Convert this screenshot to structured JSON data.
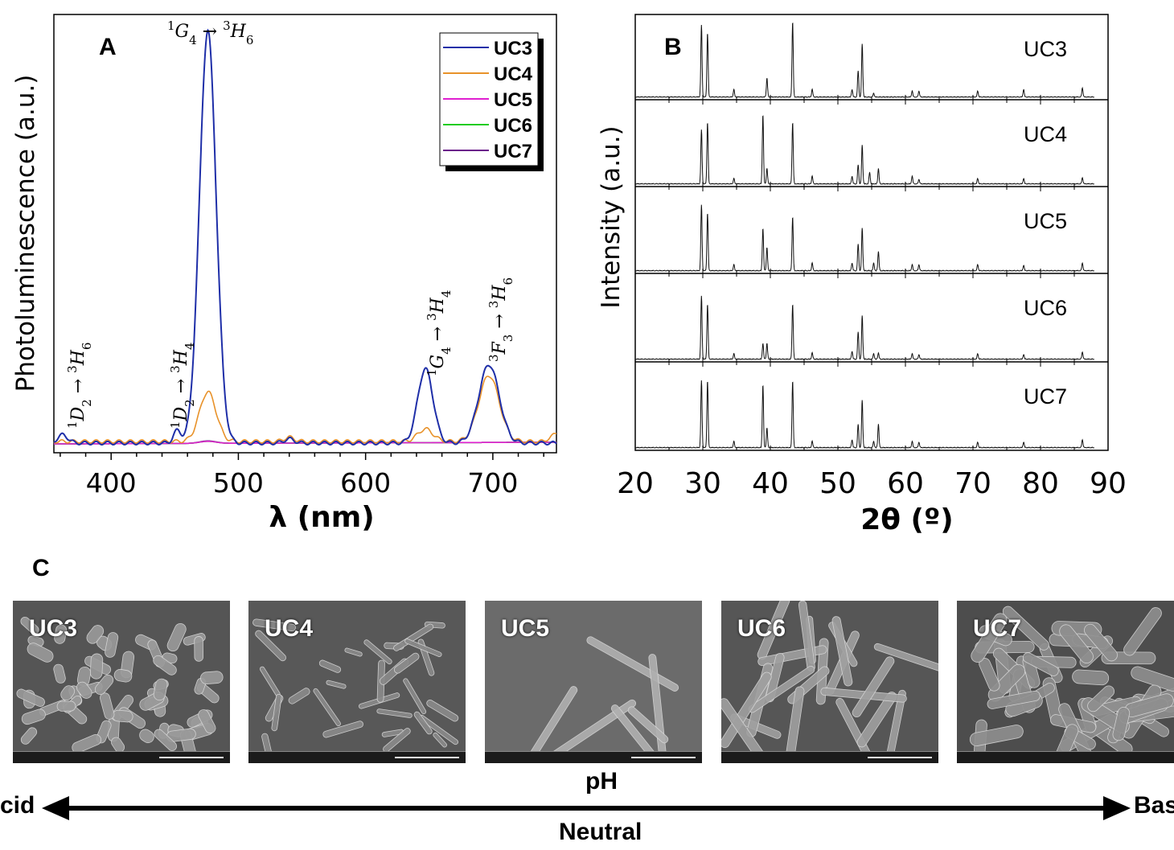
{
  "panel_a": {
    "letter": "A",
    "ylabel": "Photoluminescence (a.u.)",
    "xlabel": "λ (nm)",
    "legend": [
      "UC3",
      "UC4",
      "UC5",
      "UC6",
      "UC7"
    ],
    "annotations": [
      {
        "label": "1D2 → 3H6",
        "x_nm": 362
      },
      {
        "label": "1D2 → 3H4",
        "x_nm": 452
      },
      {
        "label": "1G4 → 3H6",
        "x_nm": 476
      },
      {
        "label": "1G4 → 3H4",
        "x_nm": 647
      },
      {
        "label": "3F3 → 3H6",
        "x_nm": 697
      }
    ]
  },
  "panel_b": {
    "letter": "B",
    "ylabel": "Intensity (a.u.)",
    "xlabel": "2θ (º)",
    "labels": [
      "UC3",
      "UC4",
      "UC5",
      "UC6",
      "UC7"
    ]
  },
  "panel_c": {
    "letter": "C",
    "images": [
      {
        "label": "UC3",
        "bg": "#555"
      },
      {
        "label": "UC4",
        "bg": "#585858"
      },
      {
        "label": "UC5",
        "bg": "#6b6b6b"
      },
      {
        "label": "UC6",
        "bg": "#565656"
      },
      {
        "label": "UC7",
        "bg": "#4d4d4d"
      }
    ],
    "ph_label": "pH",
    "acid_label": "cid",
    "base_label": "Bas",
    "neutral_label": "Neutral"
  },
  "chart_data": [
    {
      "type": "line",
      "xlabel": "λ (nm)",
      "ylabel": "Photoluminescence (a.u.)",
      "xlim": [
        355,
        750
      ],
      "xticks": [
        400,
        500,
        600,
        700
      ],
      "ylim": [
        0,
        1.05
      ],
      "legend_position": "top-right",
      "series": [
        {
          "name": "UC3",
          "color": "#1f2fa8",
          "peaks": [
            [
              362,
              0.02
            ],
            [
              452,
              0.03
            ],
            [
              476,
              1.0
            ],
            [
              540,
              0.01
            ],
            [
              647,
              0.18
            ],
            [
              697,
              0.19
            ]
          ]
        },
        {
          "name": "UC4",
          "color": "#e8922a",
          "peaks": [
            [
              476,
              0.12
            ],
            [
              540,
              0.01
            ],
            [
              647,
              0.03
            ],
            [
              697,
              0.16
            ]
          ]
        },
        {
          "name": "UC5",
          "color": "#e020d0",
          "peaks": [
            [
              476,
              0.005
            ]
          ]
        },
        {
          "name": "UC6",
          "color": "#22cc22",
          "peaks": [
            [
              476,
              0.005
            ]
          ]
        },
        {
          "name": "UC7",
          "color": "#6a1a8a",
          "peaks": [
            [
              476,
              0.006
            ]
          ]
        }
      ]
    },
    {
      "type": "line",
      "xlabel": "2θ (º)",
      "ylabel": "Intensity (a.u.)",
      "xlim": [
        20,
        90
      ],
      "xticks": [
        20,
        30,
        40,
        50,
        60,
        70,
        80,
        90
      ],
      "series": [
        {
          "name": "UC3",
          "peaks": [
            [
              29.8,
              0.95
            ],
            [
              30.7,
              0.85
            ],
            [
              34.6,
              0.1
            ],
            [
              39.5,
              0.25
            ],
            [
              43.3,
              1.0
            ],
            [
              46.2,
              0.1
            ],
            [
              52.1,
              0.1
            ],
            [
              53.0,
              0.35
            ],
            [
              53.6,
              0.7
            ],
            [
              55.3,
              0.05
            ],
            [
              61.0,
              0.08
            ],
            [
              62.0,
              0.08
            ],
            [
              70.7,
              0.08
            ],
            [
              77.5,
              0.1
            ],
            [
              86.2,
              0.12
            ]
          ]
        },
        {
          "name": "UC4",
          "peaks": [
            [
              29.8,
              0.7
            ],
            [
              30.7,
              0.8
            ],
            [
              34.6,
              0.07
            ],
            [
              38.9,
              0.9
            ],
            [
              39.5,
              0.2
            ],
            [
              43.3,
              0.8
            ],
            [
              46.2,
              0.1
            ],
            [
              52.1,
              0.1
            ],
            [
              53.0,
              0.25
            ],
            [
              53.6,
              0.5
            ],
            [
              54.7,
              0.15
            ],
            [
              56.0,
              0.2
            ],
            [
              61.0,
              0.1
            ],
            [
              62.0,
              0.06
            ],
            [
              70.7,
              0.07
            ],
            [
              77.5,
              0.07
            ],
            [
              86.2,
              0.08
            ]
          ]
        },
        {
          "name": "UC5",
          "peaks": [
            [
              29.8,
              0.85
            ],
            [
              30.7,
              0.75
            ],
            [
              34.6,
              0.08
            ],
            [
              38.9,
              0.55
            ],
            [
              39.5,
              0.3
            ],
            [
              43.3,
              0.7
            ],
            [
              46.2,
              0.1
            ],
            [
              52.1,
              0.1
            ],
            [
              53.0,
              0.35
            ],
            [
              53.6,
              0.55
            ],
            [
              55.3,
              0.1
            ],
            [
              56.0,
              0.25
            ],
            [
              61.0,
              0.08
            ],
            [
              62.0,
              0.08
            ],
            [
              70.7,
              0.08
            ],
            [
              77.5,
              0.07
            ],
            [
              86.2,
              0.1
            ]
          ]
        },
        {
          "name": "UC6",
          "peaks": [
            [
              29.8,
              0.8
            ],
            [
              30.7,
              0.7
            ],
            [
              34.6,
              0.07
            ],
            [
              38.9,
              0.2
            ],
            [
              39.5,
              0.2
            ],
            [
              43.3,
              0.7
            ],
            [
              46.2,
              0.08
            ],
            [
              52.1,
              0.1
            ],
            [
              53.0,
              0.35
            ],
            [
              53.6,
              0.55
            ],
            [
              55.3,
              0.07
            ],
            [
              56.0,
              0.08
            ],
            [
              61.0,
              0.07
            ],
            [
              62.0,
              0.06
            ],
            [
              70.7,
              0.07
            ],
            [
              77.5,
              0.06
            ],
            [
              86.2,
              0.09
            ]
          ]
        },
        {
          "name": "UC7",
          "peaks": [
            [
              29.8,
              0.85
            ],
            [
              30.7,
              0.85
            ],
            [
              34.6,
              0.08
            ],
            [
              38.9,
              0.8
            ],
            [
              39.5,
              0.25
            ],
            [
              43.3,
              0.85
            ],
            [
              46.2,
              0.08
            ],
            [
              52.1,
              0.1
            ],
            [
              53.0,
              0.3
            ],
            [
              53.6,
              0.6
            ],
            [
              55.3,
              0.08
            ],
            [
              56.0,
              0.3
            ],
            [
              61.0,
              0.08
            ],
            [
              62.0,
              0.07
            ],
            [
              70.7,
              0.07
            ],
            [
              77.5,
              0.07
            ],
            [
              86.2,
              0.1
            ]
          ]
        }
      ]
    }
  ]
}
